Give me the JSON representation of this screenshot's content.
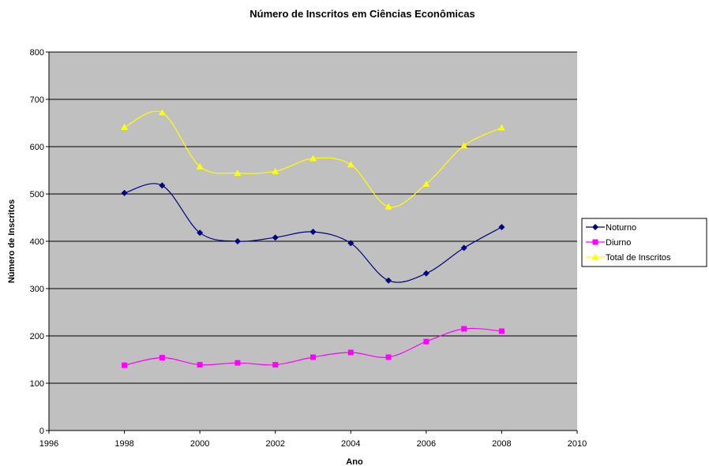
{
  "chart_data": {
    "type": "line",
    "title": "Número de Inscritos em Ciências Econômicas",
    "xlabel": "Ano",
    "ylabel": "Número de Inscritos",
    "xlim": [
      1996,
      2010
    ],
    "ylim": [
      0,
      800
    ],
    "x_ticks": [
      1996,
      1998,
      2000,
      2002,
      2004,
      2006,
      2008,
      2010
    ],
    "y_ticks": [
      0,
      100,
      200,
      300,
      400,
      500,
      600,
      700,
      800
    ],
    "grid": "horizontal",
    "smooth": true,
    "plot_background": "#C0C0C0",
    "legend_position": "right",
    "x": [
      1998,
      1999,
      2000,
      2001,
      2002,
      2003,
      2004,
      2005,
      2006,
      2007,
      2008
    ],
    "series": [
      {
        "name": "Noturno",
        "color": "#000080",
        "marker": "diamond",
        "values": [
          502,
          518,
          418,
          400,
          408,
          420,
          396,
          317,
          332,
          386,
          430
        ]
      },
      {
        "name": "Diurno",
        "color": "#FF00FF",
        "marker": "square",
        "values": [
          138,
          154,
          139,
          143,
          139,
          155,
          165,
          155,
          188,
          215,
          210
        ]
      },
      {
        "name": "Total de Inscritos",
        "color": "#FFFF00",
        "marker": "triangle",
        "values": [
          641,
          672,
          558,
          544,
          548,
          575,
          562,
          473,
          521,
          602,
          640
        ]
      }
    ]
  }
}
